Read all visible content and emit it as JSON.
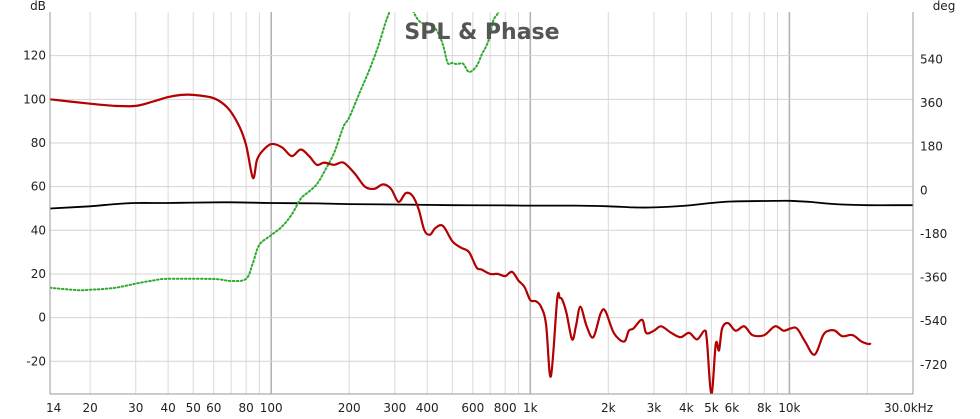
{
  "chart_data": {
    "type": "line",
    "title": "SPL & Phase",
    "left_unit": "dB",
    "right_unit": "deg",
    "x_scale": "log",
    "xlim": [
      14,
      30000
    ],
    "ylim_left": [
      -35,
      140
    ],
    "ylim_right": [
      -840,
      735
    ],
    "grid": true,
    "legend": "none",
    "x_ticks": [
      {
        "value": 14,
        "label": "14"
      },
      {
        "value": 20,
        "label": "20"
      },
      {
        "value": 30,
        "label": "30"
      },
      {
        "value": 40,
        "label": "40"
      },
      {
        "value": 50,
        "label": "50"
      },
      {
        "value": 60,
        "label": "60"
      },
      {
        "value": 80,
        "label": "80"
      },
      {
        "value": 100,
        "label": "100"
      },
      {
        "value": 200,
        "label": "200"
      },
      {
        "value": 300,
        "label": "300"
      },
      {
        "value": 400,
        "label": "400"
      },
      {
        "value": 600,
        "label": "600"
      },
      {
        "value": 800,
        "label": "800"
      },
      {
        "value": 1000,
        "label": "1k"
      },
      {
        "value": 2000,
        "label": "2k"
      },
      {
        "value": 3000,
        "label": "3k"
      },
      {
        "value": 4000,
        "label": "4k"
      },
      {
        "value": 5000,
        "label": "5k"
      },
      {
        "value": 6000,
        "label": "6k"
      },
      {
        "value": 8000,
        "label": "8k"
      },
      {
        "value": 10000,
        "label": "10k"
      },
      {
        "value": 30000,
        "label": "30.0kHz"
      }
    ],
    "y_ticks_left": [
      {
        "value": 120,
        "label": "120"
      },
      {
        "value": 100,
        "label": "100"
      },
      {
        "value": 80,
        "label": "80"
      },
      {
        "value": 60,
        "label": "60"
      },
      {
        "value": 40,
        "label": "40"
      },
      {
        "value": 20,
        "label": "20"
      },
      {
        "value": 0,
        "label": "0"
      },
      {
        "value": -20,
        "label": "-20"
      }
    ],
    "y_ticks_right": [
      {
        "value": 540,
        "label": "540"
      },
      {
        "value": 360,
        "label": "360"
      },
      {
        "value": 180,
        "label": "180"
      },
      {
        "value": 0,
        "label": "0"
      },
      {
        "value": -180,
        "label": "-180"
      },
      {
        "value": -360,
        "label": "-360"
      },
      {
        "value": -540,
        "label": "-540"
      },
      {
        "value": -720,
        "label": "-720"
      }
    ],
    "series": [
      {
        "axis": "left",
        "color": "#b30000",
        "style": "solid",
        "x": [
          14,
          20,
          25,
          30,
          35,
          40,
          45,
          50,
          60,
          68,
          75,
          80,
          85,
          88,
          92,
          100,
          110,
          120,
          130,
          140,
          150,
          160,
          175,
          190,
          210,
          230,
          250,
          270,
          290,
          310,
          330,
          350,
          370,
          390,
          410,
          430,
          460,
          500,
          540,
          580,
          620,
          650,
          700,
          750,
          800,
          850,
          900,
          950,
          1000,
          1050,
          1100,
          1150,
          1200,
          1270,
          1300,
          1330,
          1380,
          1450,
          1500,
          1560,
          1650,
          1750,
          1870,
          1950,
          2100,
          2300,
          2400,
          2500,
          2700,
          2800,
          3000,
          3200,
          3500,
          3800,
          4100,
          4400,
          4700,
          4800,
          5000,
          5200,
          5350,
          5500,
          5800,
          6200,
          6700,
          7200,
          8000,
          8800,
          9500,
          10100,
          10700,
          11500,
          12500,
          13500,
          14200,
          15000,
          16000,
          17500,
          19000,
          20000,
          20500
        ],
        "values": [
          100,
          98,
          97,
          97,
          99,
          101,
          102,
          102,
          100.5,
          96,
          88,
          79,
          64,
          72,
          76,
          79.5,
          78,
          74,
          77,
          74,
          70,
          71,
          70,
          71,
          66,
          60,
          59,
          61,
          59,
          53,
          57,
          56,
          50,
          40,
          38,
          41,
          42,
          35,
          32,
          30,
          23,
          22,
          20,
          20,
          19,
          21,
          17,
          14,
          8,
          7.5,
          5,
          -3,
          -27,
          8.5,
          9,
          8,
          2,
          -10,
          -4,
          5,
          -4,
          -9,
          2,
          3,
          -7,
          -11,
          -6,
          -5,
          -1,
          -7,
          -6,
          -4,
          -7,
          -9,
          -7,
          -10,
          -6,
          -10,
          -35,
          -12,
          -15,
          -5,
          -2.5,
          -6,
          -4,
          -8,
          -8,
          -4,
          -6,
          -5,
          -5,
          -11,
          -17,
          -8,
          -6,
          -6,
          -8.5,
          -8,
          -11,
          -12,
          -12
        ]
      },
      {
        "axis": "right",
        "color": "#2eab2e",
        "style": "dotted",
        "x": [
          14,
          18,
          20,
          22,
          25,
          28,
          30,
          35,
          40,
          60,
          70,
          80,
          85,
          90,
          100,
          110,
          120,
          130,
          140,
          150,
          160,
          175,
          190,
          200,
          220,
          240,
          260,
          280,
          300,
          320,
          340,
          360,
          380,
          400,
          420,
          440,
          460,
          480,
          500,
          520,
          550,
          580,
          620,
          650,
          680,
          700,
          720,
          750,
          780,
          800
        ],
        "values": [
          -402,
          -412,
          -410,
          -408,
          -402,
          -392,
          -385,
          -372,
          -365,
          -366,
          -374,
          -365,
          -300,
          -225,
          -185,
          -150,
          -100,
          -35,
          -5,
          25,
          75,
          155,
          262,
          300,
          405,
          500,
          600,
          710,
          775,
          790,
          780,
          720,
          690,
          690,
          680,
          650,
          600,
          525,
          525,
          520,
          522,
          488,
          512,
          560,
          600,
          640,
          700,
          730,
          770,
          830
        ]
      },
      {
        "axis": "left",
        "color": "#000000",
        "style": "solid",
        "x": [
          14,
          20,
          25,
          30,
          40,
          50,
          70,
          100,
          150,
          200,
          300,
          500,
          800,
          1000,
          1500,
          2000,
          2500,
          3000,
          4000,
          5000,
          6000,
          8000,
          10000,
          12000,
          15000,
          20000,
          25000,
          30000
        ],
        "values": [
          50,
          51,
          52,
          52.5,
          52.5,
          52.7,
          52.8,
          52.5,
          52.3,
          52,
          51.8,
          51.5,
          51.4,
          51.3,
          51.3,
          51,
          50.5,
          50.5,
          51.3,
          52.5,
          53.2,
          53.4,
          53.5,
          53,
          52,
          51.5,
          51.5,
          51.5
        ]
      }
    ]
  }
}
